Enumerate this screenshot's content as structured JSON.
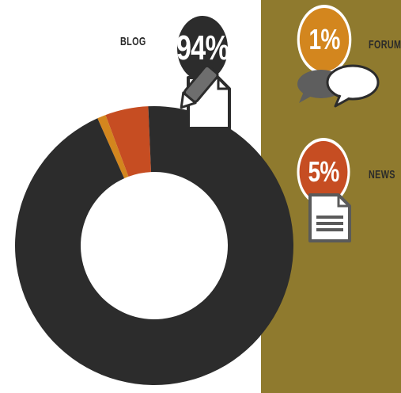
{
  "chart_data": {
    "type": "pie",
    "categories": [
      "BLOG",
      "FORUM",
      "NEWS"
    ],
    "values": [
      94,
      1,
      5
    ],
    "value_labels": [
      "94%",
      "1%",
      "5%"
    ],
    "colors": [
      "#2c2c2c",
      "#d3861e",
      "#c64d22"
    ]
  },
  "icons": [
    "pencil-note-icon",
    "speech-bubbles-icon",
    "document-icon"
  ],
  "colors": {
    "panel": "#8f7a2e",
    "background": "#ffffff"
  }
}
